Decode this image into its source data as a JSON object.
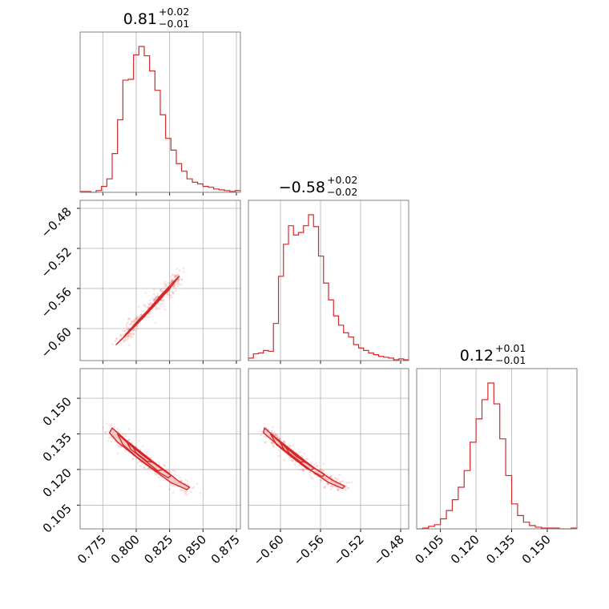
{
  "chart_data": {
    "type": "corner",
    "colors": {
      "main": "#d62728",
      "fill": "#f4c6c6",
      "grid": "#b0b0b0",
      "frame": "#808080"
    },
    "parameters": [
      {
        "median": "0.81",
        "upper": "+0.02",
        "lower": "−0.01",
        "range": [
          0.758,
          0.878
        ],
        "ticks": [
          0.775,
          0.8,
          0.825,
          0.85,
          0.875
        ],
        "tick_labels": [
          "0.775",
          "0.800",
          "0.825",
          "0.850",
          "0.875"
        ]
      },
      {
        "median": "−0.58",
        "upper": "+0.02",
        "lower": "−0.02",
        "range": [
          -0.632,
          -0.472
        ],
        "ticks": [
          -0.6,
          -0.56,
          -0.52,
          -0.48
        ],
        "tick_labels": [
          "−0.60",
          "−0.56",
          "−0.52",
          "−0.48"
        ]
      },
      {
        "median": "0.12",
        "upper": "+0.01",
        "lower": "−0.01",
        "range": [
          0.095,
          0.1625
        ],
        "ticks": [
          0.105,
          0.12,
          0.135,
          0.15
        ],
        "tick_labels": [
          "0.105",
          "0.120",
          "0.135",
          "0.150"
        ]
      }
    ],
    "histograms": [
      {
        "param": 0,
        "type": "step",
        "edges": [
          0.758,
          0.762,
          0.766,
          0.77,
          0.774,
          0.778,
          0.782,
          0.786,
          0.79,
          0.794,
          0.798,
          0.802,
          0.806,
          0.81,
          0.814,
          0.818,
          0.822,
          0.826,
          0.83,
          0.834,
          0.838,
          0.842,
          0.846,
          0.85,
          0.854,
          0.858,
          0.862,
          0.866,
          0.87,
          0.874,
          0.878
        ],
        "counts": [
          1,
          1,
          0,
          2,
          7,
          16,
          46,
          86,
          133,
          134,
          163,
          173,
          162,
          144,
          121,
          92,
          64,
          50,
          34,
          25,
          16,
          12,
          10,
          7,
          6,
          4,
          3,
          2,
          1,
          2
        ]
      },
      {
        "param": 1,
        "type": "step",
        "edges": [
          -0.632,
          -0.627,
          -0.622,
          -0.617,
          -0.612,
          -0.607,
          -0.602,
          -0.597,
          -0.592,
          -0.587,
          -0.582,
          -0.577,
          -0.572,
          -0.567,
          -0.562,
          -0.557,
          -0.552,
          -0.547,
          -0.542,
          -0.537,
          -0.532,
          -0.527,
          -0.522,
          -0.517,
          -0.512,
          -0.507,
          -0.502,
          -0.497,
          -0.492,
          -0.487,
          -0.482,
          -0.477,
          -0.472
        ],
        "counts": [
          3,
          8,
          9,
          12,
          11,
          44,
          100,
          138,
          160,
          149,
          152,
          160,
          173,
          159,
          124,
          92,
          72,
          53,
          42,
          33,
          28,
          19,
          15,
          12,
          9,
          7,
          5,
          4,
          3,
          1,
          2,
          1
        ]
      },
      {
        "param": 2,
        "type": "step",
        "edges": [
          0.095,
          0.0975,
          0.1,
          0.1025,
          0.105,
          0.1075,
          0.11,
          0.1125,
          0.115,
          0.1175,
          0.12,
          0.1225,
          0.125,
          0.1275,
          0.13,
          0.1325,
          0.135,
          0.1375,
          0.14,
          0.1425,
          0.145,
          0.1475,
          0.15,
          0.1525,
          0.155,
          0.1575,
          0.16,
          0.1625
        ],
        "counts": [
          0,
          1,
          3,
          5,
          12,
          22,
          35,
          50,
          70,
          104,
          132,
          155,
          175,
          150,
          108,
          64,
          30,
          16,
          8,
          4,
          2,
          1,
          1,
          1,
          0,
          0,
          1
        ]
      }
    ],
    "scatter_panels": [
      {
        "x_param": 0,
        "y_param": 1,
        "scatter_hint": "narrow diagonal ridge, points spread sparsely up to the upper-right",
        "contours": [
          [
            [
              0.785,
              -0.616
            ],
            [
              0.795,
              -0.603
            ],
            [
              0.806,
              -0.588
            ],
            [
              0.815,
              -0.574
            ],
            [
              0.824,
              -0.562
            ],
            [
              0.832,
              -0.548
            ],
            [
              0.829,
              -0.552
            ],
            [
              0.819,
              -0.566
            ],
            [
              0.81,
              -0.58
            ],
            [
              0.8,
              -0.594
            ],
            [
              0.789,
              -0.611
            ]
          ],
          [
            [
              0.792,
              -0.606
            ],
            [
              0.801,
              -0.595
            ],
            [
              0.81,
              -0.582
            ],
            [
              0.818,
              -0.57
            ],
            [
              0.826,
              -0.558
            ],
            [
              0.821,
              -0.564
            ],
            [
              0.813,
              -0.577
            ],
            [
              0.804,
              -0.589
            ],
            [
              0.795,
              -0.602
            ]
          ],
          [
            [
              0.798,
              -0.599
            ],
            [
              0.806,
              -0.588
            ],
            [
              0.813,
              -0.578
            ],
            [
              0.82,
              -0.568
            ],
            [
              0.815,
              -0.574
            ],
            [
              0.808,
              -0.584
            ],
            [
              0.801,
              -0.594
            ]
          ],
          [
            [
              0.802,
              -0.592
            ],
            [
              0.809,
              -0.583
            ],
            [
              0.815,
              -0.575
            ],
            [
              0.811,
              -0.58
            ],
            [
              0.805,
              -0.588
            ]
          ]
        ]
      },
      {
        "x_param": 0,
        "y_param": 2,
        "scatter_hint": "curved downward band with sparse points at low x high y and high x low y",
        "contours": [
          [
            [
              0.782,
              0.1375
            ],
            [
              0.79,
              0.1335
            ],
            [
              0.8,
              0.1285
            ],
            [
              0.812,
              0.1235
            ],
            [
              0.822,
              0.1195
            ],
            [
              0.832,
              0.115
            ],
            [
              0.84,
              0.1125
            ],
            [
              0.838,
              0.1115
            ],
            [
              0.826,
              0.1145
            ],
            [
              0.815,
              0.119
            ],
            [
              0.804,
              0.1235
            ],
            [
              0.794,
              0.128
            ],
            [
              0.786,
              0.1315
            ],
            [
              0.78,
              0.1355
            ]
          ],
          [
            [
              0.786,
              0.135
            ],
            [
              0.795,
              0.1305
            ],
            [
              0.806,
              0.1255
            ],
            [
              0.816,
              0.1215
            ],
            [
              0.826,
              0.1175
            ],
            [
              0.824,
              0.1165
            ],
            [
              0.812,
              0.1205
            ],
            [
              0.801,
              0.125
            ],
            [
              0.79,
              0.1305
            ]
          ],
          [
            [
              0.792,
              0.1325
            ],
            [
              0.8,
              0.129
            ],
            [
              0.81,
              0.1245
            ],
            [
              0.82,
              0.12
            ],
            [
              0.816,
              0.1195
            ],
            [
              0.806,
              0.124
            ],
            [
              0.796,
              0.1285
            ]
          ],
          [
            [
              0.797,
              0.13
            ],
            [
              0.805,
              0.1265
            ],
            [
              0.813,
              0.123
            ],
            [
              0.808,
              0.1235
            ],
            [
              0.8,
              0.127
            ]
          ]
        ]
      },
      {
        "x_param": 1,
        "y_param": 2,
        "scatter_hint": "curved downward band with sparse points at low x high y and high x low y",
        "contours": [
          [
            [
              -0.616,
              0.1375
            ],
            [
              -0.605,
              0.1335
            ],
            [
              -0.592,
              0.1285
            ],
            [
              -0.576,
              0.1235
            ],
            [
              -0.562,
              0.1195
            ],
            [
              -0.548,
              0.1155
            ],
            [
              -0.536,
              0.113
            ],
            [
              -0.538,
              0.112
            ],
            [
              -0.552,
              0.1145
            ],
            [
              -0.566,
              0.1185
            ],
            [
              -0.58,
              0.123
            ],
            [
              -0.594,
              0.1275
            ],
            [
              -0.606,
              0.1315
            ],
            [
              -0.617,
              0.1355
            ]
          ],
          [
            [
              -0.61,
              0.135
            ],
            [
              -0.598,
              0.1305
            ],
            [
              -0.584,
              0.1255
            ],
            [
              -0.57,
              0.1215
            ],
            [
              -0.556,
              0.118
            ],
            [
              -0.558,
              0.117
            ],
            [
              -0.574,
              0.1205
            ],
            [
              -0.588,
              0.125
            ],
            [
              -0.604,
              0.1305
            ]
          ],
          [
            [
              -0.602,
              0.1325
            ],
            [
              -0.59,
              0.1285
            ],
            [
              -0.578,
              0.1245
            ],
            [
              -0.566,
              0.1205
            ],
            [
              -0.57,
              0.1198
            ],
            [
              -0.583,
              0.1238
            ],
            [
              -0.596,
              0.1282
            ]
          ],
          [
            [
              -0.596,
              0.13
            ],
            [
              -0.585,
              0.1265
            ],
            [
              -0.575,
              0.1232
            ],
            [
              -0.58,
              0.1232
            ],
            [
              -0.591,
              0.1268
            ]
          ]
        ]
      }
    ],
    "grid": true
  }
}
